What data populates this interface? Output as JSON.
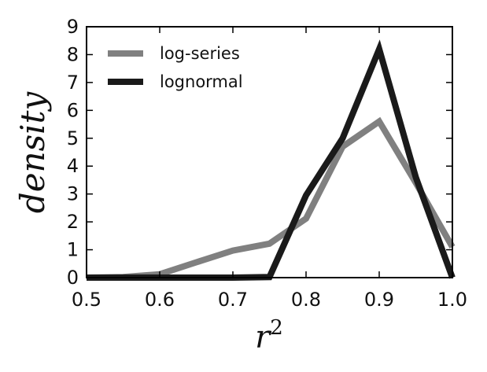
{
  "chart_data": {
    "type": "line",
    "xlabel": "r",
    "xlabel_superscript": "2",
    "ylabel": "density",
    "xlim": [
      0.5,
      1.0
    ],
    "ylim": [
      0,
      9
    ],
    "xticks": [
      "0.5",
      "0.6",
      "0.7",
      "0.8",
      "0.9",
      "1.0"
    ],
    "yticks": [
      "0",
      "1",
      "2",
      "3",
      "4",
      "5",
      "6",
      "7",
      "8",
      "9"
    ],
    "grid": false,
    "legend_position": "top-left",
    "series": [
      {
        "name": "log-series",
        "color": "#808080",
        "x": [
          0.5,
          0.55,
          0.6,
          0.65,
          0.7,
          0.75,
          0.8,
          0.85,
          0.9,
          0.95,
          1.0
        ],
        "y": [
          0.0,
          0.02,
          0.12,
          0.55,
          0.97,
          1.22,
          2.12,
          4.7,
          5.6,
          3.4,
          1.1
        ]
      },
      {
        "name": "lognormal",
        "color": "#1a1a1a",
        "x": [
          0.5,
          0.55,
          0.6,
          0.65,
          0.7,
          0.75,
          0.8,
          0.85,
          0.9,
          0.95,
          1.0
        ],
        "y": [
          0.0,
          0.0,
          0.0,
          0.0,
          0.0,
          0.02,
          2.95,
          5.0,
          8.2,
          3.6,
          0.0
        ]
      }
    ]
  }
}
